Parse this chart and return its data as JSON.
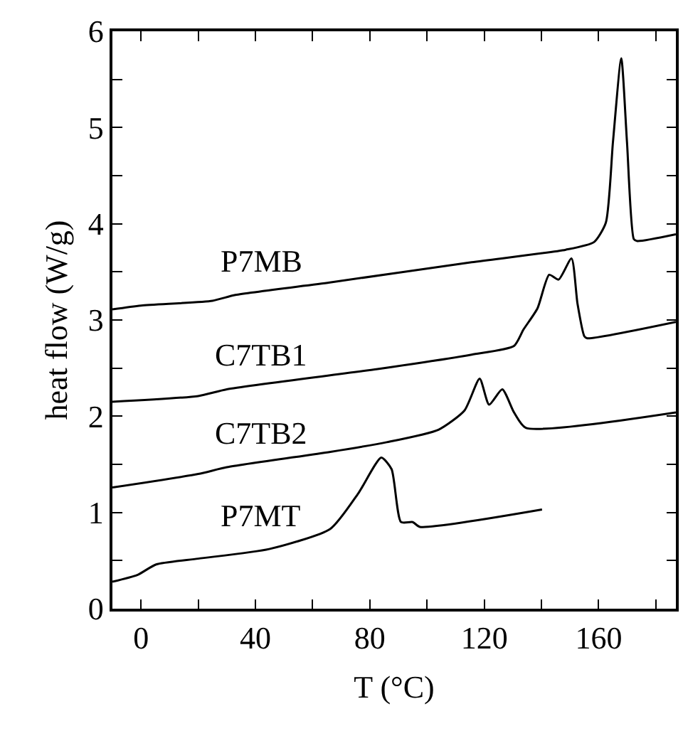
{
  "chart_data": {
    "type": "line",
    "xlabel": "T (°C)",
    "ylabel": "heat flow (W/g)",
    "xlim": [
      -10,
      187
    ],
    "ylim": [
      0,
      6
    ],
    "xticks": [
      0,
      {
        "value": 20,
        "label": null
      },
      40,
      {
        "value": 60,
        "label": null
      },
      80,
      {
        "value": 100,
        "label": null
      },
      120,
      {
        "value": 140,
        "label": null
      },
      160,
      {
        "value": 180,
        "label": null
      }
    ],
    "yticks": [
      0,
      {
        "value": 0.5,
        "label": null
      },
      1,
      {
        "value": 1.5,
        "label": null
      },
      2,
      {
        "value": 2.5,
        "label": null
      },
      3,
      {
        "value": 3.5,
        "label": null
      },
      4,
      {
        "value": 4.5,
        "label": null
      },
      5,
      {
        "value": 5.5,
        "label": null
      },
      6
    ],
    "legend": false,
    "marker": "none",
    "line_style": "solid",
    "series": [
      {
        "name": "P7MB",
        "color": "#000000",
        "x": [
          -10,
          0,
          25,
          33,
          66,
          115.6,
          148.5,
          158.4,
          162.5,
          165,
          167.9,
          169.9,
          172.3,
          173.5,
          187
        ],
        "values": [
          3.11,
          3.15,
          3.2,
          3.26,
          3.39,
          3.6,
          3.73,
          3.81,
          4.01,
          4.85,
          5.72,
          4.85,
          3.84,
          3.82,
          3.89
        ]
      },
      {
        "name": "C7TB1",
        "color": "#000000",
        "x": [
          -10,
          20,
          30,
          82.7,
          115.6,
          130.4,
          133.7,
          138.6,
          142.7,
          146,
          150.5,
          152.6,
          155,
          156,
          187
        ],
        "values": [
          2.15,
          2.21,
          2.28,
          2.49,
          2.64,
          2.73,
          2.9,
          3.12,
          3.47,
          3.42,
          3.64,
          3.17,
          2.83,
          2.81,
          2.98
        ]
      },
      {
        "name": "C7TB2",
        "color": "#000000",
        "x": [
          -10,
          20,
          30,
          66.2,
          85.9,
          104,
          113.1,
          118.4,
          121.7,
          126.3,
          130.4,
          134.5,
          187
        ],
        "values": [
          1.26,
          1.4,
          1.47,
          1.63,
          1.73,
          1.86,
          2.06,
          2.39,
          2.12,
          2.28,
          2.04,
          1.88,
          2.04
        ]
      },
      {
        "name": "P7MT",
        "color": "#000000",
        "x": [
          -10,
          -1.3,
          5.3,
          20,
          44.8,
          66.2,
          76,
          84,
          87.6,
          90.9,
          95,
          97.5,
          140.2
        ],
        "values": [
          0.28,
          0.35,
          0.46,
          0.52,
          0.62,
          0.83,
          1.2,
          1.57,
          1.45,
          0.9,
          0.9,
          0.85,
          1.03
        ]
      }
    ]
  }
}
